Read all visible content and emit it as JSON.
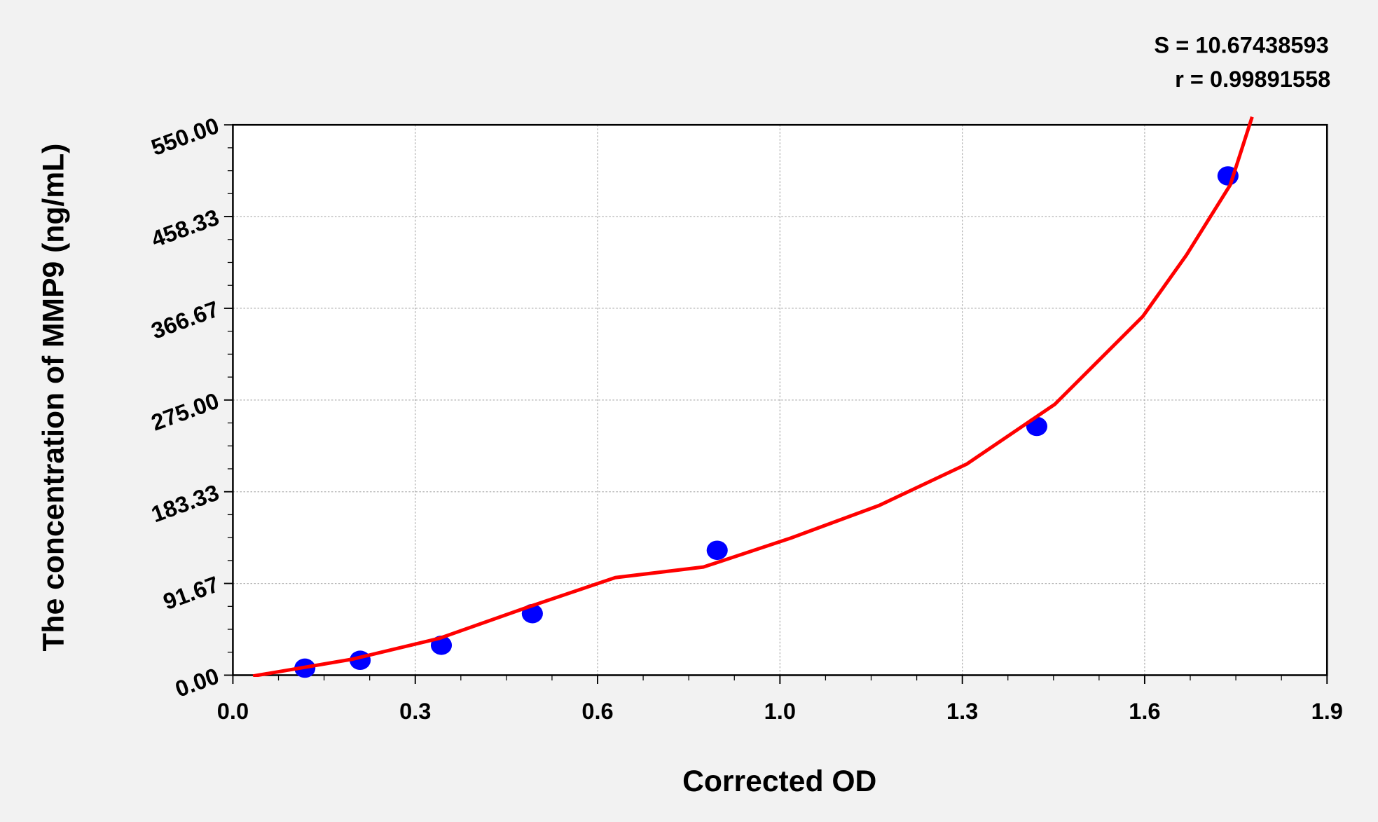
{
  "chart_data": {
    "type": "scatter",
    "x_label": "Corrected OD",
    "y_label": "The concentration of  MMP9 (ng/mL)",
    "annotations": [
      "S = 10.67438593",
      "r = 0.99891558"
    ],
    "xlim": [
      0,
      1.9
    ],
    "ylim": [
      0,
      550
    ],
    "xticks": [
      {
        "value": 0,
        "label": "0.0"
      },
      {
        "value": 0.3167,
        "label": "0.3"
      },
      {
        "value": 0.6333,
        "label": "0.6"
      },
      {
        "value": 0.95,
        "label": "1.0"
      },
      {
        "value": 1.2667,
        "label": "1.3"
      },
      {
        "value": 1.5833,
        "label": "1.6"
      },
      {
        "value": 1.9,
        "label": "1.9"
      }
    ],
    "yticks": [
      {
        "value": 0,
        "label": "0.00"
      },
      {
        "value": 91.67,
        "label": "91.67"
      },
      {
        "value": 183.33,
        "label": "183.33"
      },
      {
        "value": 275,
        "label": "275.00"
      },
      {
        "value": 366.67,
        "label": "366.67"
      },
      {
        "value": 458.33,
        "label": "458.33"
      },
      {
        "value": 550,
        "label": "550.00"
      }
    ],
    "grid": true,
    "points": {
      "color": "#0000ff",
      "x": [
        0.125,
        0.221,
        0.362,
        0.52,
        0.841,
        1.396,
        1.728
      ],
      "values": [
        7.0,
        14.9,
        29.9,
        61.5,
        124.8,
        248.6,
        499
      ]
    },
    "curve": {
      "color": "#ff0000",
      "x": [
        0.035,
        0.206,
        0.359,
        0.511,
        0.664,
        0.817,
        0.969,
        1.122,
        1.274,
        1.427,
        1.58,
        1.656,
        1.732,
        1.77
      ],
      "values": [
        -0.9,
        15.8,
        36.9,
        67.7,
        97.5,
        108.1,
        137.1,
        169.6,
        210.9,
        270.6,
        358.5,
        420,
        490,
        558
      ]
    }
  }
}
